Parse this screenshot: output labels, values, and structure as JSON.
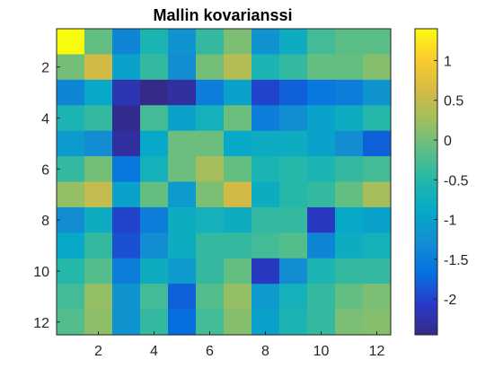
{
  "chart_data": {
    "type": "heatmap",
    "title": "Mallin kovarianssi",
    "xlabel": "",
    "ylabel": "",
    "x_range": [
      0.5,
      12.5
    ],
    "y_range": [
      0.5,
      12.5
    ],
    "y_reversed": true,
    "x_ticks": [
      2,
      4,
      6,
      8,
      10,
      12
    ],
    "x_tick_labels": [
      "2",
      "4",
      "6",
      "8",
      "10",
      "12"
    ],
    "y_ticks": [
      2,
      4,
      6,
      8,
      10,
      12
    ],
    "y_tick_labels": [
      "2",
      "4",
      "6",
      "8",
      "10",
      "12"
    ],
    "colorbar": {
      "colormap": "parula",
      "range": [
        -2.45,
        1.4
      ],
      "ticks": [
        1,
        0.5,
        0,
        -0.5,
        -1,
        -1.5,
        -2
      ],
      "tick_labels": [
        "1",
        "0.5",
        "0",
        "-0.5",
        "-1",
        "-1.5",
        "-2"
      ]
    },
    "grid": false,
    "values": [
      [
        1.4,
        -0.1,
        -1.4,
        -0.6,
        -1.2,
        -0.4,
        0.05,
        -1.2,
        -0.8,
        -0.3,
        -0.15,
        -0.15
      ],
      [
        0.0,
        0.6,
        -1.0,
        -0.4,
        -1.3,
        0.0,
        0.4,
        -0.6,
        -0.4,
        -0.1,
        -0.1,
        0.1
      ],
      [
        -1.4,
        -0.9,
        -2.2,
        -2.45,
        -2.3,
        -1.5,
        -1.0,
        -2.0,
        -1.8,
        -1.6,
        -1.5,
        -1.2
      ],
      [
        -0.6,
        -0.4,
        -2.4,
        -0.3,
        -1.0,
        -0.7,
        -0.05,
        -1.5,
        -1.3,
        -1.0,
        -0.8,
        -0.5
      ],
      [
        -1.1,
        -1.3,
        -2.3,
        -0.9,
        -0.05,
        -0.05,
        -0.9,
        -0.8,
        -0.8,
        -1.0,
        -1.3,
        -1.8
      ],
      [
        -0.4,
        0.0,
        -1.6,
        -0.7,
        -0.05,
        0.3,
        -0.1,
        -0.6,
        -0.5,
        -0.6,
        -0.4,
        -0.3
      ],
      [
        0.2,
        0.5,
        -1.0,
        -0.1,
        -1.1,
        0.05,
        0.6,
        -0.8,
        -0.5,
        -0.4,
        -0.1,
        0.3
      ],
      [
        -1.3,
        -0.8,
        -2.0,
        -1.5,
        -0.8,
        -0.7,
        -0.8,
        -0.4,
        -0.4,
        -2.1,
        -0.9,
        -1.0
      ],
      [
        -0.9,
        -0.4,
        -1.9,
        -1.3,
        -0.8,
        -0.4,
        -0.4,
        -0.3,
        -0.2,
        -1.4,
        -0.8,
        -0.7
      ],
      [
        -0.5,
        -0.2,
        -1.5,
        -0.8,
        -1.1,
        -0.4,
        -0.1,
        -2.1,
        -1.3,
        -0.6,
        -0.4,
        -0.4
      ],
      [
        -0.3,
        0.2,
        -1.2,
        -0.3,
        -1.8,
        -0.2,
        0.2,
        -1.1,
        -0.7,
        -0.4,
        -0.1,
        0.05
      ],
      [
        -0.2,
        0.15,
        -1.2,
        -0.4,
        -1.7,
        -0.3,
        0.1,
        -1.0,
        -0.6,
        -0.4,
        0.05,
        0.1
      ]
    ]
  }
}
